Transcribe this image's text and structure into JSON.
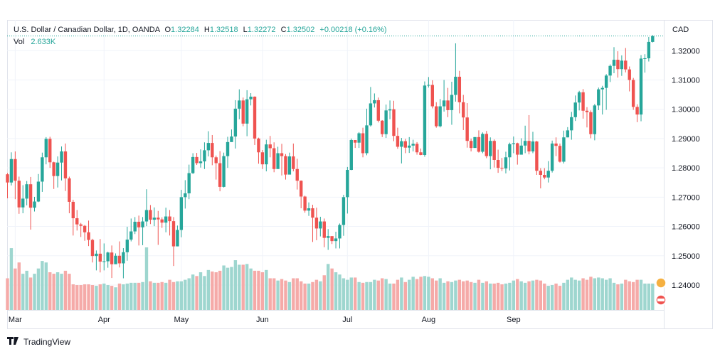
{
  "header": {
    "symbol": "U.S. Dollar / Canadian Dollar, 1D, OANDA",
    "open_label": "O",
    "open": "1.32284",
    "high_label": "H",
    "high": "1.32518",
    "low_label": "L",
    "low": "1.32272",
    "close_label": "C",
    "close": "1.32502",
    "change": "+0.00218 (+0.16%)",
    "vol_label": "Vol",
    "vol": "2.633K"
  },
  "currency_label": "CAD",
  "brand": "TradingView",
  "colors": {
    "up": "#26a69a",
    "down": "#ef5350",
    "up_vol": "#9ed6cf",
    "down_vol": "#f5aaa8",
    "grid": "#f0f3fa"
  },
  "chart_data": {
    "type": "candlestick",
    "y_ticks": [
      "1.32000",
      "1.31000",
      "1.30000",
      "1.29000",
      "1.28000",
      "1.27000",
      "1.26000",
      "1.25000",
      "1.24000"
    ],
    "y_tick_values": [
      1.32,
      1.31,
      1.3,
      1.29,
      1.28,
      1.27,
      1.26,
      1.25,
      1.24
    ],
    "ylim": [
      1.2315,
      1.3305
    ],
    "x_ticks": [
      {
        "label": "Mar",
        "index": 2
      },
      {
        "label": "Apr",
        "index": 25
      },
      {
        "label": "May",
        "index": 45
      },
      {
        "label": "Jun",
        "index": 66
      },
      {
        "label": "Jul",
        "index": 88
      },
      {
        "label": "Aug",
        "index": 109
      },
      {
        "label": "Sep",
        "index": 131
      }
    ],
    "candles": [
      [
        1.2778,
        1.275,
        1.2782,
        1.2696
      ],
      [
        1.275,
        1.283,
        1.2853,
        1.274
      ],
      [
        1.283,
        1.2756,
        1.2856,
        1.2693
      ],
      [
        1.2756,
        1.2665,
        1.277,
        1.2643
      ],
      [
        1.2665,
        1.2695,
        1.2741,
        1.2645
      ],
      [
        1.2695,
        1.2744,
        1.2755,
        1.2672
      ],
      [
        1.2744,
        1.2664,
        1.2769,
        1.2589
      ],
      [
        1.2664,
        1.2685,
        1.2701,
        1.2651
      ],
      [
        1.2685,
        1.2753,
        1.2779,
        1.2683
      ],
      [
        1.2753,
        1.2836,
        1.2852,
        1.2718
      ],
      [
        1.2836,
        1.2899,
        1.2905,
        1.2812
      ],
      [
        1.2899,
        1.2819,
        1.2906,
        1.28
      ],
      [
        1.2819,
        1.2772,
        1.2821,
        1.2728
      ],
      [
        1.2772,
        1.2818,
        1.2839,
        1.2733
      ],
      [
        1.2818,
        1.2856,
        1.2873,
        1.2757
      ],
      [
        1.2856,
        1.2764,
        1.2883,
        1.2721
      ],
      [
        1.2764,
        1.2684,
        1.277,
        1.2645
      ],
      [
        1.2684,
        1.2628,
        1.2691,
        1.2569
      ],
      [
        1.2628,
        1.2607,
        1.2656,
        1.2586
      ],
      [
        1.2607,
        1.2602,
        1.2612,
        1.2564
      ],
      [
        1.2602,
        1.258,
        1.2605,
        1.2551
      ],
      [
        1.258,
        1.2554,
        1.262,
        1.2533
      ],
      [
        1.2554,
        1.2499,
        1.2558,
        1.2477
      ],
      [
        1.2499,
        1.2507,
        1.2518,
        1.245
      ],
      [
        1.2507,
        1.248,
        1.2557,
        1.2443
      ],
      [
        1.248,
        1.2481,
        1.2542,
        1.245
      ],
      [
        1.2481,
        1.2511,
        1.2514,
        1.2459
      ],
      [
        1.2511,
        1.2471,
        1.2535,
        1.2424
      ],
      [
        1.2471,
        1.25,
        1.2508,
        1.2491
      ],
      [
        1.25,
        1.2474,
        1.2549,
        1.246
      ],
      [
        1.2474,
        1.2512,
        1.2526,
        1.2423
      ],
      [
        1.2512,
        1.2555,
        1.2599,
        1.2483
      ],
      [
        1.2555,
        1.2583,
        1.2627,
        1.2549
      ],
      [
        1.2583,
        1.2616,
        1.2632,
        1.2574
      ],
      [
        1.2616,
        1.2597,
        1.2637,
        1.2535
      ],
      [
        1.2597,
        1.2617,
        1.2632,
        1.2536
      ],
      [
        1.2617,
        1.2656,
        1.2727,
        1.2601
      ],
      [
        1.2656,
        1.2623,
        1.2673,
        1.2608
      ],
      [
        1.2623,
        1.263,
        1.2665,
        1.2601
      ],
      [
        1.263,
        1.2624,
        1.2653,
        1.2537
      ],
      [
        1.2624,
        1.2613,
        1.2631,
        1.2595
      ],
      [
        1.2613,
        1.2634,
        1.2664,
        1.258
      ],
      [
        1.2634,
        1.2618,
        1.2656,
        1.2569
      ],
      [
        1.2618,
        1.2532,
        1.2632,
        1.2465
      ],
      [
        1.2532,
        1.2588,
        1.2603,
        1.2532
      ],
      [
        1.2588,
        1.27,
        1.2725,
        1.2563
      ],
      [
        1.27,
        1.2713,
        1.2758,
        1.2661
      ],
      [
        1.2713,
        1.2782,
        1.2811,
        1.2693
      ],
      [
        1.2782,
        1.2837,
        1.285,
        1.2779
      ],
      [
        1.2837,
        1.2816,
        1.2851,
        1.281
      ],
      [
        1.2816,
        1.2822,
        1.2863,
        1.2801
      ],
      [
        1.2822,
        1.286,
        1.2887,
        1.2796
      ],
      [
        1.286,
        1.2885,
        1.2925,
        1.2839
      ],
      [
        1.2885,
        1.2836,
        1.2912,
        1.2809
      ],
      [
        1.2836,
        1.2816,
        1.2842,
        1.276
      ],
      [
        1.2816,
        1.2735,
        1.2857,
        1.272
      ],
      [
        1.2735,
        1.284,
        1.2852,
        1.2733
      ],
      [
        1.284,
        1.2888,
        1.2906,
        1.28
      ],
      [
        1.2888,
        1.2907,
        1.2931,
        1.289
      ],
      [
        1.2907,
        1.3002,
        1.3031,
        1.2866
      ],
      [
        1.3002,
        1.303,
        1.3068,
        1.2966
      ],
      [
        1.303,
        1.2951,
        1.304,
        1.2942
      ],
      [
        1.2951,
        1.3034,
        1.3065,
        1.2908
      ],
      [
        1.3034,
        1.3043,
        1.3055,
        1.3013
      ],
      [
        1.3043,
        1.29,
        1.3044,
        1.2878
      ],
      [
        1.29,
        1.2853,
        1.2903,
        1.2814
      ],
      [
        1.2853,
        1.2812,
        1.2861,
        1.2796
      ],
      [
        1.2812,
        1.288,
        1.2896,
        1.2788
      ],
      [
        1.288,
        1.2867,
        1.2909,
        1.2836
      ],
      [
        1.2867,
        1.2796,
        1.2887,
        1.2785
      ],
      [
        1.2796,
        1.285,
        1.2872,
        1.2822
      ],
      [
        1.285,
        1.284,
        1.2882,
        1.2774
      ],
      [
        1.284,
        1.2777,
        1.2847,
        1.276
      ],
      [
        1.2777,
        1.2839,
        1.2852,
        1.283
      ],
      [
        1.2839,
        1.2796,
        1.2883,
        1.2788
      ],
      [
        1.2796,
        1.2756,
        1.2831,
        1.2726
      ],
      [
        1.2756,
        1.2702,
        1.2757,
        1.2662
      ],
      [
        1.2702,
        1.2654,
        1.2705,
        1.2647
      ],
      [
        1.2654,
        1.2662,
        1.2682,
        1.2636
      ],
      [
        1.2662,
        1.263,
        1.2674,
        1.2547
      ],
      [
        1.263,
        1.2593,
        1.2664,
        1.2553
      ],
      [
        1.2593,
        1.2617,
        1.2633,
        1.2566
      ],
      [
        1.2617,
        1.2561,
        1.2627,
        1.2529
      ],
      [
        1.2561,
        1.2567,
        1.2591,
        1.252
      ],
      [
        1.2567,
        1.255,
        1.2563,
        1.254
      ],
      [
        1.255,
        1.2559,
        1.2582,
        1.2525
      ],
      [
        1.2559,
        1.2605,
        1.261,
        1.2525
      ],
      [
        1.2605,
        1.27,
        1.2708,
        1.2568
      ],
      [
        1.27,
        1.2793,
        1.2803,
        1.2644
      ],
      [
        1.2793,
        1.2895,
        1.29,
        1.2792
      ],
      [
        1.2895,
        1.2886,
        1.2892,
        1.2868
      ],
      [
        1.2886,
        1.2918,
        1.2922,
        1.2868
      ],
      [
        1.2918,
        1.285,
        1.2937,
        1.2836
      ],
      [
        1.285,
        1.2945,
        1.3002,
        1.2843
      ],
      [
        1.2945,
        1.302,
        1.3076,
        1.2941
      ],
      [
        1.302,
        1.3031,
        1.3054,
        1.3006
      ],
      [
        1.3031,
        1.2961,
        1.304,
        1.2955
      ],
      [
        1.2961,
        1.2915,
        1.2963,
        1.2905
      ],
      [
        1.2915,
        1.2996,
        1.3016,
        1.2902
      ],
      [
        1.2996,
        1.3,
        1.303,
        1.2966
      ],
      [
        1.3,
        1.2909,
        1.3029,
        1.2891
      ],
      [
        1.2909,
        1.2872,
        1.2937,
        1.2865
      ],
      [
        1.2872,
        1.2891,
        1.2902,
        1.2815
      ],
      [
        1.2891,
        1.2869,
        1.2899,
        1.285
      ],
      [
        1.2869,
        1.2876,
        1.2905,
        1.2851
      ],
      [
        1.2876,
        1.2882,
        1.2896,
        1.2856
      ],
      [
        1.2882,
        1.2853,
        1.2888,
        1.2845
      ],
      [
        1.2853,
        1.2844,
        1.2866,
        1.2843
      ],
      [
        1.2844,
        1.3081,
        1.3095,
        1.2838
      ],
      [
        1.3081,
        1.3083,
        1.311,
        1.3074
      ],
      [
        1.3083,
        1.301,
        1.3099,
        1.3003
      ],
      [
        1.301,
        1.2942,
        1.3024,
        1.2937
      ],
      [
        1.2942,
        1.301,
        1.3035,
        1.2938
      ],
      [
        1.301,
        1.303,
        1.31,
        1.2992
      ],
      [
        1.303,
        1.2997,
        1.3073,
        1.2973
      ],
      [
        1.2997,
        1.3049,
        1.3094,
        1.2947
      ],
      [
        1.3049,
        1.3111,
        1.3225,
        1.3026
      ],
      [
        1.3111,
        1.3024,
        1.3131,
        1.2986
      ],
      [
        1.3024,
        1.2972,
        1.3049,
        1.2929
      ],
      [
        1.2972,
        1.2892,
        1.3021,
        1.2869
      ],
      [
        1.2892,
        1.2868,
        1.29,
        1.2856
      ],
      [
        1.2868,
        1.2905,
        1.2905,
        1.2868
      ],
      [
        1.2905,
        1.2855,
        1.2928,
        1.2852
      ],
      [
        1.2855,
        1.2916,
        1.2921,
        1.285
      ],
      [
        1.2916,
        1.284,
        1.2926,
        1.2833
      ],
      [
        1.284,
        1.2892,
        1.2904,
        1.2795
      ],
      [
        1.2892,
        1.2827,
        1.2897,
        1.2801
      ],
      [
        1.2827,
        1.28,
        1.2862,
        1.2783
      ],
      [
        1.28,
        1.2798,
        1.2834,
        1.2789
      ],
      [
        1.2798,
        1.2836,
        1.2855,
        1.2781
      ],
      [
        1.2836,
        1.2881,
        1.2886,
        1.2791
      ],
      [
        1.2881,
        1.2884,
        1.2907,
        1.285
      ],
      [
        1.2884,
        1.2845,
        1.2886,
        1.2811
      ],
      [
        1.2845,
        1.2876,
        1.2901,
        1.2858
      ],
      [
        1.2876,
        1.2892,
        1.2944,
        1.285
      ],
      [
        1.2892,
        1.2856,
        1.298,
        1.2846
      ],
      [
        1.2856,
        1.289,
        1.2923,
        1.285
      ],
      [
        1.289,
        1.279,
        1.2892,
        1.2776
      ],
      [
        1.279,
        1.2776,
        1.2799,
        1.273
      ],
      [
        1.2776,
        1.2767,
        1.2799,
        1.2761
      ],
      [
        1.2767,
        1.279,
        1.2823,
        1.275
      ],
      [
        1.279,
        1.2883,
        1.2893,
        1.2784
      ],
      [
        1.2883,
        1.2875,
        1.2904,
        1.284
      ],
      [
        1.2875,
        1.2821,
        1.2883,
        1.2818
      ],
      [
        1.2821,
        1.2904,
        1.2927,
        1.2815
      ],
      [
        1.2904,
        1.2928,
        1.2939,
        1.2904
      ],
      [
        1.2928,
        1.2973,
        1.2991,
        1.2896
      ],
      [
        1.2973,
        1.3023,
        1.3047,
        1.296
      ],
      [
        1.3023,
        1.3058,
        1.3063,
        1.2996
      ],
      [
        1.3058,
        1.2995,
        1.3069,
        1.2968
      ],
      [
        1.2995,
        1.299,
        1.3007,
        1.2938
      ],
      [
        1.299,
        1.2915,
        1.2996,
        1.2901
      ],
      [
        1.2915,
        1.3013,
        1.3018,
        1.2894
      ],
      [
        1.3013,
        1.3068,
        1.3074,
        1.2997
      ],
      [
        1.3068,
        1.3073,
        1.308,
        1.2982
      ],
      [
        1.3073,
        1.3115,
        1.312,
        1.2998
      ],
      [
        1.3115,
        1.3148,
        1.3153,
        1.3093
      ],
      [
        1.3148,
        1.3169,
        1.3212,
        1.3123
      ],
      [
        1.3169,
        1.3137,
        1.3198,
        1.3108
      ],
      [
        1.3137,
        1.3166,
        1.3184,
        1.3114
      ],
      [
        1.3166,
        1.3136,
        1.3209,
        1.3126
      ],
      [
        1.3136,
        1.31,
        1.3146,
        1.3061
      ],
      [
        1.31,
        1.3008,
        1.3107,
        1.2998
      ],
      [
        1.3008,
        1.2982,
        1.3017,
        1.2956
      ],
      [
        1.2982,
        1.3173,
        1.3185,
        1.2959
      ],
      [
        1.3173,
        1.3174,
        1.3188,
        1.3125
      ],
      [
        1.3174,
        1.323,
        1.3247,
        1.3163
      ],
      [
        1.323,
        1.325,
        1.3253,
        1.3228
      ]
    ],
    "volume_ratio": [
      0.42,
      0.82,
      0.55,
      0.63,
      0.48,
      0.52,
      0.43,
      0.48,
      0.55,
      0.65,
      0.63,
      0.5,
      0.48,
      0.5,
      0.48,
      0.52,
      0.48,
      0.34,
      0.33,
      0.33,
      0.34,
      0.34,
      0.33,
      0.32,
      0.34,
      0.35,
      0.33,
      0.32,
      0.3,
      0.35,
      0.34,
      0.35,
      0.36,
      0.36,
      0.36,
      0.37,
      0.83,
      0.38,
      0.36,
      0.36,
      0.37,
      0.36,
      0.4,
      0.37,
      0.38,
      0.38,
      0.4,
      0.42,
      0.47,
      0.45,
      0.5,
      0.45,
      0.53,
      0.51,
      0.5,
      0.52,
      0.59,
      0.56,
      0.57,
      0.66,
      0.6,
      0.6,
      0.61,
      0.55,
      0.52,
      0.52,
      0.5,
      0.53,
      0.42,
      0.42,
      0.39,
      0.41,
      0.39,
      0.37,
      0.42,
      0.42,
      0.38,
      0.35,
      0.35,
      0.37,
      0.4,
      0.38,
      0.46,
      0.61,
      0.55,
      0.5,
      0.47,
      0.42,
      0.4,
      0.43,
      0.43,
      0.37,
      0.36,
      0.37,
      0.37,
      0.4,
      0.39,
      0.42,
      0.41,
      0.35,
      0.35,
      0.4,
      0.43,
      0.37,
      0.4,
      0.44,
      0.41,
      0.44,
      0.45,
      0.44,
      0.42,
      0.39,
      0.42,
      0.36,
      0.38,
      0.37,
      0.39,
      0.4,
      0.38,
      0.39,
      0.37,
      0.36,
      0.4,
      0.36,
      0.38,
      0.35,
      0.35,
      0.36,
      0.34,
      0.35,
      0.36,
      0.39,
      0.41,
      0.38,
      0.36,
      0.38,
      0.39,
      0.4,
      0.39,
      0.35,
      0.32,
      0.33,
      0.35,
      0.32,
      0.36,
      0.4,
      0.43,
      0.4,
      0.39,
      0.42,
      0.4,
      0.44,
      0.42,
      0.43,
      0.42,
      0.4,
      0.42,
      0.36,
      0.34,
      0.35,
      0.4,
      0.38,
      0.37,
      0.4,
      0.4
    ]
  }
}
